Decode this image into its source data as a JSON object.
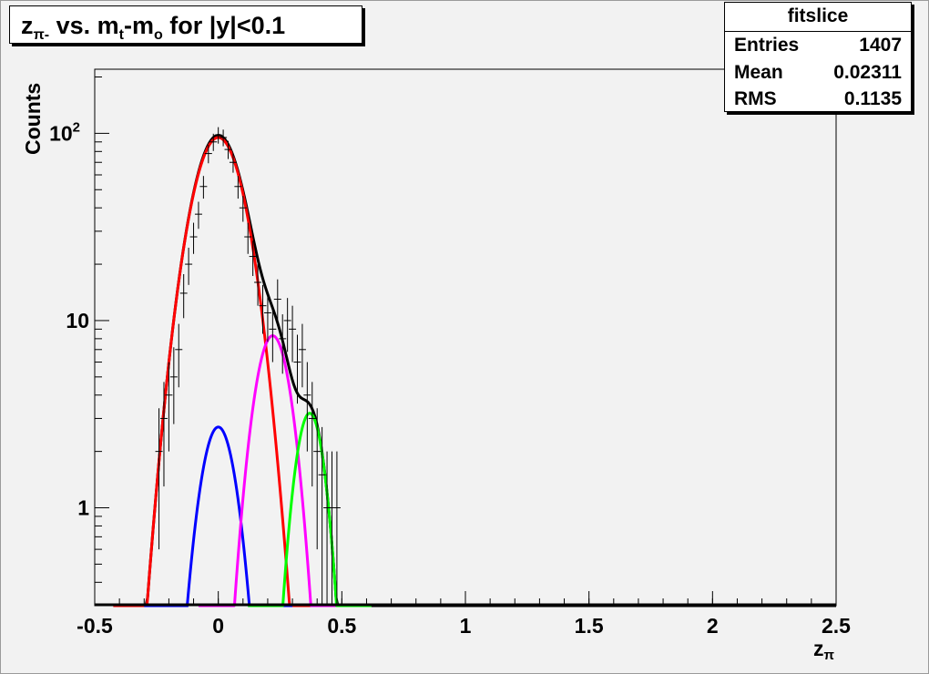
{
  "title": {
    "main": "z",
    "sub": "π-",
    "rest": " vs. m",
    "sub2": "t",
    "rest2": "-m",
    "sub3": "o",
    "rest3": " for |y|<0.1"
  },
  "stats": {
    "name": "fitslice",
    "rows": [
      {
        "label": "Entries",
        "value": "1407"
      },
      {
        "label": "Mean",
        "value": "0.02311"
      },
      {
        "label": "RMS",
        "value": "0.1135"
      }
    ]
  },
  "chart_data": {
    "type": "line",
    "xlabel": "z",
    "xlabel_sub": "π",
    "ylabel": "Counts",
    "xlim": [
      -0.5,
      2.5
    ],
    "ylim": [
      0.3,
      220
    ],
    "yscale": "log",
    "x_ticks": [
      "-0.5",
      "0",
      "0.5",
      "1",
      "1.5",
      "2",
      "2.5"
    ],
    "x_tick_values": [
      -0.5,
      0,
      0.5,
      1,
      1.5,
      2,
      2.5
    ],
    "y_ticks": [
      "1",
      "10",
      "10"
    ],
    "y_tick_values": [
      1,
      10,
      100
    ],
    "y_tick_sup": [
      "",
      "",
      "2"
    ],
    "grid": false,
    "colors": {
      "total": "#000000",
      "red": "#ff0000",
      "blue": "#0000ff",
      "magenta": "#ff00ff",
      "green": "#00ff00"
    },
    "components": [
      {
        "color": "red",
        "amplitude": 95,
        "mean": 0.0,
        "sigma": 0.085
      },
      {
        "color": "blue",
        "amplitude": 2.7,
        "mean": 0.0,
        "sigma": 0.06
      },
      {
        "color": "magenta",
        "amplitude": 8.3,
        "mean": 0.22,
        "sigma": 0.06
      },
      {
        "color": "green",
        "amplitude": 3.2,
        "mean": 0.37,
        "sigma": 0.05
      }
    ],
    "data_points": [
      {
        "x": -0.24,
        "y": 2.0,
        "err": 1.4
      },
      {
        "x": -0.22,
        "y": 3.0,
        "err": 1.7
      },
      {
        "x": -0.2,
        "y": 4.0,
        "err": 2.0
      },
      {
        "x": -0.18,
        "y": 5.0,
        "err": 2.2
      },
      {
        "x": -0.16,
        "y": 7.0,
        "err": 2.6
      },
      {
        "x": -0.14,
        "y": 14.0,
        "err": 3.7
      },
      {
        "x": -0.12,
        "y": 20.0,
        "err": 4.5
      },
      {
        "x": -0.1,
        "y": 28.0,
        "err": 5.3
      },
      {
        "x": -0.08,
        "y": 37.0,
        "err": 6.1
      },
      {
        "x": -0.06,
        "y": 52.0,
        "err": 7.2
      },
      {
        "x": -0.04,
        "y": 78.0,
        "err": 8.8
      },
      {
        "x": -0.02,
        "y": 90.0,
        "err": 9.5
      },
      {
        "x": 0.0,
        "y": 98.0,
        "err": 9.9
      },
      {
        "x": 0.02,
        "y": 95.0,
        "err": 9.7
      },
      {
        "x": 0.04,
        "y": 82.0,
        "err": 9.1
      },
      {
        "x": 0.06,
        "y": 70.0,
        "err": 8.4
      },
      {
        "x": 0.08,
        "y": 52.0,
        "err": 7.2
      },
      {
        "x": 0.1,
        "y": 40.0,
        "err": 6.3
      },
      {
        "x": 0.12,
        "y": 28.0,
        "err": 5.3
      },
      {
        "x": 0.14,
        "y": 22.0,
        "err": 4.7
      },
      {
        "x": 0.16,
        "y": 16.0,
        "err": 4.0
      },
      {
        "x": 0.18,
        "y": 12.0,
        "err": 3.5
      },
      {
        "x": 0.2,
        "y": 11.0,
        "err": 3.3
      },
      {
        "x": 0.22,
        "y": 9.0,
        "err": 3.0
      },
      {
        "x": 0.24,
        "y": 13.0,
        "err": 3.6
      },
      {
        "x": 0.26,
        "y": 8.0,
        "err": 2.8
      },
      {
        "x": 0.28,
        "y": 10.0,
        "err": 3.2
      },
      {
        "x": 0.3,
        "y": 9.0,
        "err": 3.0
      },
      {
        "x": 0.32,
        "y": 6.0,
        "err": 2.4
      },
      {
        "x": 0.34,
        "y": 7.0,
        "err": 2.6
      },
      {
        "x": 0.36,
        "y": 4.0,
        "err": 2.0
      },
      {
        "x": 0.38,
        "y": 3.0,
        "err": 1.7
      },
      {
        "x": 0.4,
        "y": 2.0,
        "err": 1.4
      },
      {
        "x": 0.42,
        "y": 1.5,
        "err": 1.2
      },
      {
        "x": 0.44,
        "y": 1.0,
        "err": 1.0
      },
      {
        "x": 0.46,
        "y": 1.0,
        "err": 1.0
      },
      {
        "x": 0.48,
        "y": 1.0,
        "err": 1.0
      }
    ]
  }
}
